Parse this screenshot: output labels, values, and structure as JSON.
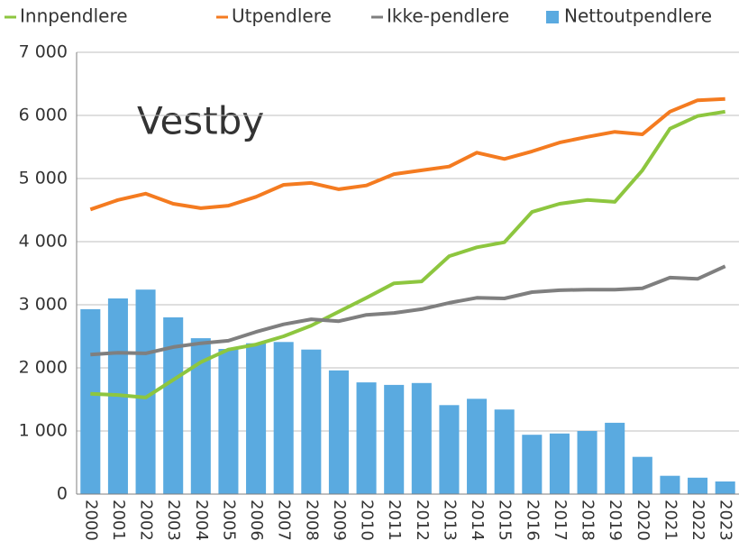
{
  "chart_data": {
    "type": "combo",
    "annotation": "Vestby",
    "categories": [
      "2000",
      "2001",
      "2002",
      "2003",
      "2004",
      "2005",
      "2006",
      "2007",
      "2008",
      "2009",
      "2010",
      "2011",
      "2012",
      "2013",
      "2014",
      "2015",
      "2016",
      "2017",
      "2018",
      "2019",
      "2020",
      "2021",
      "2022",
      "2023"
    ],
    "series": [
      {
        "name": "Innpendlere",
        "type": "line",
        "color": "#8dc63f",
        "values": [
          1590,
          1570,
          1530,
          1810,
          2090,
          2290,
          2370,
          2500,
          2670,
          2890,
          3110,
          3340,
          3370,
          3770,
          3910,
          3990,
          4470,
          4600,
          4660,
          4630,
          5130,
          5790,
          5990,
          6060
        ]
      },
      {
        "name": "Utpendlere",
        "type": "line",
        "color": "#f47b20",
        "values": [
          4510,
          4660,
          4760,
          4600,
          4530,
          4570,
          4710,
          4900,
          4930,
          4830,
          4890,
          5070,
          5130,
          5190,
          5410,
          5310,
          5430,
          5570,
          5660,
          5740,
          5700,
          6060,
          6240,
          6260
        ]
      },
      {
        "name": "Ikke-pendlere",
        "type": "line",
        "color": "#7f7f7f",
        "values": [
          2210,
          2240,
          2230,
          2330,
          2390,
          2430,
          2570,
          2690,
          2770,
          2740,
          2840,
          2870,
          2930,
          3030,
          3110,
          3100,
          3200,
          3230,
          3240,
          3240,
          3260,
          3430,
          3410,
          3610
        ]
      },
      {
        "name": "Nettoutpendlere",
        "type": "bar",
        "color": "#5aaae0",
        "values": [
          2930,
          3100,
          3240,
          2800,
          2470,
          2300,
          2390,
          2410,
          2290,
          1960,
          1770,
          1730,
          1760,
          1410,
          1510,
          1340,
          940,
          960,
          1000,
          1130,
          590,
          290,
          260,
          200
        ]
      }
    ],
    "ylim": [
      0,
      7000
    ],
    "yticks": [
      0,
      {
        "value": 1000,
        "label": "1 000"
      },
      {
        "value": 2000,
        "label": "2 000"
      },
      {
        "value": 3000,
        "label": "3 000"
      },
      {
        "value": 4000,
        "label": "4 000"
      },
      {
        "value": 5000,
        "label": "5 000"
      },
      {
        "value": 6000,
        "label": "6 000"
      },
      {
        "value": 7000,
        "label": "7 000"
      }
    ],
    "grid": true
  }
}
